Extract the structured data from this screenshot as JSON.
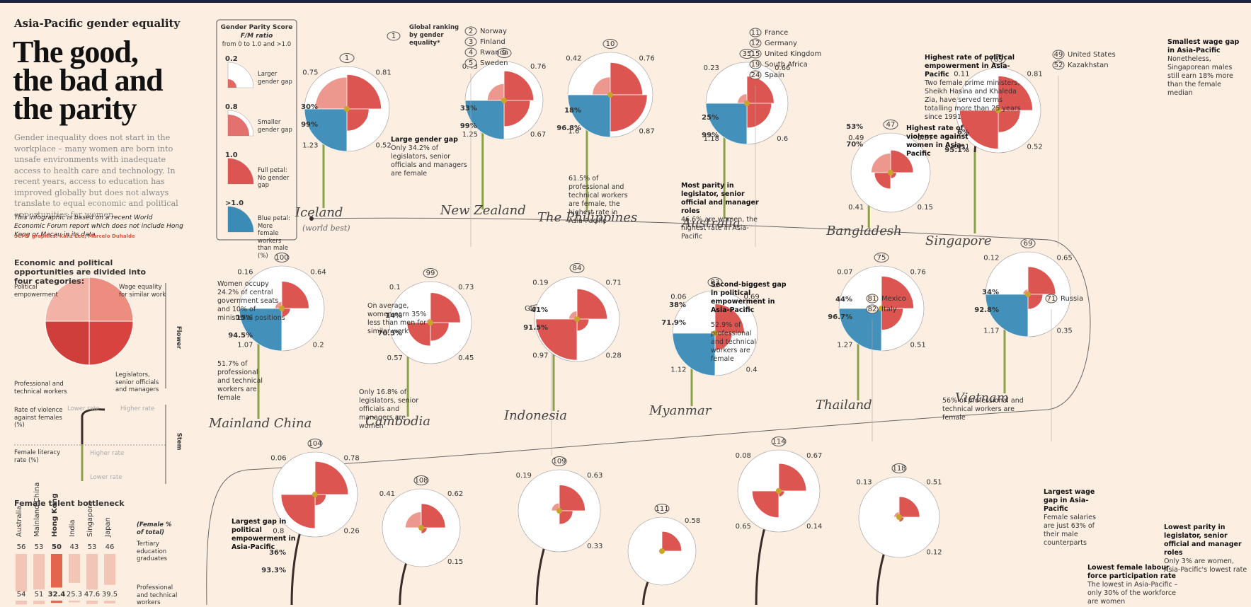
{
  "header": {
    "kicker": "Asia-Pacific gender equality",
    "title": [
      "The good,",
      "the bad and",
      "the parity"
    ],
    "intro": "Gender inequality does not start in the workplace – many women are born into unsafe environments with inadequate access to health care and technology. In recent years, access to education has improved globally but does not always translate to equal economic and political opportunities for women.",
    "note": "This infographic is based on a recent World Economic Forum report which does not include Hong Kong or Macau in its data",
    "credit": "SCMP graphics: Kaliz Lee, Marcelo Duhalde"
  },
  "legend": {
    "title": "Gender Parity Score",
    "subtitle": "F/M ratio",
    "range": "from 0 to 1.0 and >1.0",
    "items": [
      {
        "score": "0.2",
        "label": "Larger gender gap"
      },
      {
        "score": "0.8",
        "label": "Smaller gender gap"
      },
      {
        "score": "1.0",
        "label": "Full petal: No gender gap"
      },
      {
        "score": ">1.0",
        "label": "Blue petal: More female workers than male (%)"
      }
    ]
  },
  "categories": {
    "heading": "Economic and political opportunities are divided into four categories:",
    "political": "Political empowerment",
    "wage": "Wage equality for similar work",
    "professional": "Professional and technical workers",
    "legislators": "Legislators, senior officials and managers",
    "flower": "Flower",
    "violence": "Rate of violence against females (%)",
    "violence_low": "Lower rate",
    "violence_high": "Higher rate",
    "literacy": "Female literacy rate (%)",
    "literacy_high": "Higher rate",
    "literacy_low": "Lower rate",
    "stem": "Stem"
  },
  "bottleneck": {
    "title": "Female talent bottleneck",
    "countries": [
      "Australia",
      "Mainland China",
      "Hong Kong",
      "India",
      "Singapore",
      "Japan"
    ],
    "tertiary": [
      56,
      53,
      50,
      43,
      53,
      46
    ],
    "professional": [
      54,
      51,
      32.4,
      25.3,
      47.6,
      39.5
    ],
    "unit": "(Female % of total)",
    "tertiary_label": "Tertiary education graduates",
    "professional_label": "Professional and technical workers"
  },
  "ranking_note": {
    "rank": 1,
    "label": "Global ranking by gender equality*"
  },
  "global_average": "Global average",
  "countries": [
    {
      "rank": 1,
      "name": "Iceland",
      "sub": "(world best)",
      "petals": [
        0.75,
        0.81,
        0.52,
        1.23
      ],
      "violence": "30%",
      "literacy": "99%"
    },
    {
      "rank": 9,
      "name": "New Zealand",
      "petals": [
        0.43,
        0.76,
        0.67,
        1.25
      ],
      "violence": "33%",
      "literacy": "99%"
    },
    {
      "rank": 10,
      "name": "The Philippines",
      "petals": [
        0.42,
        0.76,
        0.87,
        1.6
      ],
      "violence": "18%",
      "literacy": "96.8%"
    },
    {
      "rank": 35,
      "name": "Australia",
      "petals": [
        0.23,
        0.66,
        0.6,
        1.18
      ],
      "violence": "25%",
      "literacy": "99%"
    },
    {
      "rank": 47,
      "name": "Bangladesh",
      "petals": [
        0.49,
        0.57,
        0.15,
        0.41
      ],
      "violence": "53%",
      "literacy": "70%"
    },
    {
      "rank": 65,
      "name": "Singapore",
      "petals": [
        0.11,
        0.81,
        0.52,
        0.91
      ],
      "violence": "6%",
      "literacy": "95.1%"
    },
    {
      "rank": 100,
      "name": "Mainland China",
      "petals": [
        0.16,
        0.64,
        0.2,
        1.07
      ],
      "violence": "15%",
      "literacy": "94.5%"
    },
    {
      "rank": 99,
      "name": "Cambodia",
      "petals": [
        0.1,
        0.73,
        0.45,
        0.57
      ],
      "violence": "14%",
      "literacy": "70.5%"
    },
    {
      "rank": 84,
      "name": "Indonesia",
      "petals": [
        0.19,
        0.71,
        0.28,
        0.97
      ],
      "violence": "41%",
      "literacy": "91.5%"
    },
    {
      "rank": 83,
      "name": "Myanmar",
      "petals": [
        0.06,
        0.69,
        0.4,
        1.12
      ],
      "violence": "38%",
      "literacy": "71.9%"
    },
    {
      "rank": 75,
      "name": "Thailand",
      "petals": [
        0.07,
        0.76,
        0.51,
        1.27
      ],
      "violence": "44%",
      "literacy": "96.7%"
    },
    {
      "rank": 69,
      "name": "Vietnam",
      "petals": [
        0.12,
        0.65,
        0.35,
        1.17
      ],
      "violence": "34%",
      "literacy": "92.8%"
    },
    {
      "rank": 104,
      "petals": [
        0.06,
        0.78,
        0.26,
        0.8
      ],
      "violence": "36%",
      "literacy": "93.3%"
    },
    {
      "rank": 108,
      "petals": [
        0.41,
        0.62,
        0.15,
        null
      ]
    },
    {
      "rank": 109,
      "petals": [
        0.19,
        0.63,
        0.33,
        null
      ]
    },
    {
      "rank": 111,
      "petals": [
        null,
        0.58,
        null,
        null
      ]
    },
    {
      "rank": 114,
      "petals": [
        0.08,
        0.67,
        0.14,
        0.65
      ]
    },
    {
      "rank": 118,
      "petals": [
        0.13,
        0.51,
        0.12,
        null
      ]
    }
  ],
  "other_ranks": [
    [
      {
        "rank": 2,
        "name": "Norway"
      },
      {
        "rank": 3,
        "name": "Finland"
      },
      {
        "rank": 4,
        "name": "Rwanda"
      },
      {
        "rank": 5,
        "name": "Sweden"
      }
    ],
    [
      {
        "rank": 11,
        "name": "France"
      },
      {
        "rank": 12,
        "name": "Germany"
      },
      {
        "rank": 15,
        "name": "United Kingdom"
      },
      {
        "rank": 19,
        "name": "South Africa"
      },
      {
        "rank": 24,
        "name": "Spain"
      }
    ],
    [
      {
        "rank": 49,
        "name": "United States"
      },
      {
        "rank": 52,
        "name": "Kazakhstan"
      }
    ],
    [
      {
        "rank": 81,
        "name": "Mexico"
      },
      {
        "rank": 82,
        "name": "Italy"
      }
    ],
    [
      {
        "rank": 71,
        "name": "Russia"
      }
    ]
  ],
  "annotations": [
    {
      "title": "Large gender gap",
      "text": "Only 34.2% of legislators, senior officials and managers are female"
    },
    {
      "text": "61.5% of professional and technical workers are female, the highest rate in Asia-Pacific"
    },
    {
      "title": "Most parity in legislator, senior official and manager roles",
      "text": "46.6% are women, the highest rate in Asia-Pacific"
    },
    {
      "title": "Highest rate of political empowerment in Asia-Pacific",
      "text": "Two female prime ministers, Sheikh Hasina and Khaleda Zia, have served terms totalling more than 25 years since 1991"
    },
    {
      "title": "Highest rate of violence against women in Asia-Pacific"
    },
    {
      "title": "Smallest wage gap in Asia-Pacific",
      "text": "Nonetheless, Singaporean males still earn 18% more than the female median"
    },
    {
      "text": "Women occupy 24.2% of central government seats and 10% of ministerial positions"
    },
    {
      "text": "On average, women earn 35% less than men for similar work"
    },
    {
      "text": "51.7% of professional and technical workers are female"
    },
    {
      "text": "Only 16.8% of legislators, senior officials and managers are women"
    },
    {
      "title": "Second-biggest gap in political empowerment in Asia-Pacific"
    },
    {
      "text": "52.9% of professional and technical workers are female"
    },
    {
      "text": "56% of professional and technical workers are female"
    },
    {
      "title": "Largest gap in political empowerment in Asia-Pacific"
    },
    {
      "title": "Largest wage gap in Asia-Pacific",
      "text": "Female salaries are just 63% of their male counterparts"
    },
    {
      "title": "Lowest female labour force participation rate",
      "text": "The lowest in Asia-Pacific – only 30% of the workforce are women"
    },
    {
      "title": "Lowest parity in legislator, senior official and manager roles",
      "text": "Only 3% are women, Asia-Pacific's lowest rate"
    }
  ]
}
